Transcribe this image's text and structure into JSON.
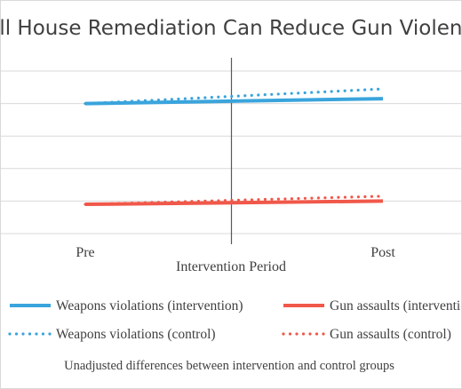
{
  "chart_data": {
    "type": "line",
    "title": "Full House Remediation Can Reduce Gun Violence",
    "xlabel": "Intervention Period",
    "ylabel": "",
    "categories": [
      "Pre",
      "Post"
    ],
    "ylim": [
      0,
      5
    ],
    "grid": true,
    "y_ticks_shown": false,
    "intervention_marker": "vertical line at midpoint",
    "legend_position": "bottom",
    "series": [
      {
        "name": "Weapons violations (intervention)",
        "values": [
          4.0,
          4.15
        ],
        "color": "#3aa4dc",
        "style": "solid"
      },
      {
        "name": "Weapons violations (control)",
        "values": [
          4.0,
          4.45
        ],
        "color": "#3aa4dc",
        "style": "dotted"
      },
      {
        "name": "Gun assaults (intervention)",
        "values": [
          0.9,
          1.0
        ],
        "color": "#f0584a",
        "style": "solid"
      },
      {
        "name": "Gun assaults (control)",
        "values": [
          0.9,
          1.15
        ],
        "color": "#f0584a",
        "style": "dotted"
      }
    ],
    "footnote": "Unadjusted differences between intervention and control groups"
  }
}
